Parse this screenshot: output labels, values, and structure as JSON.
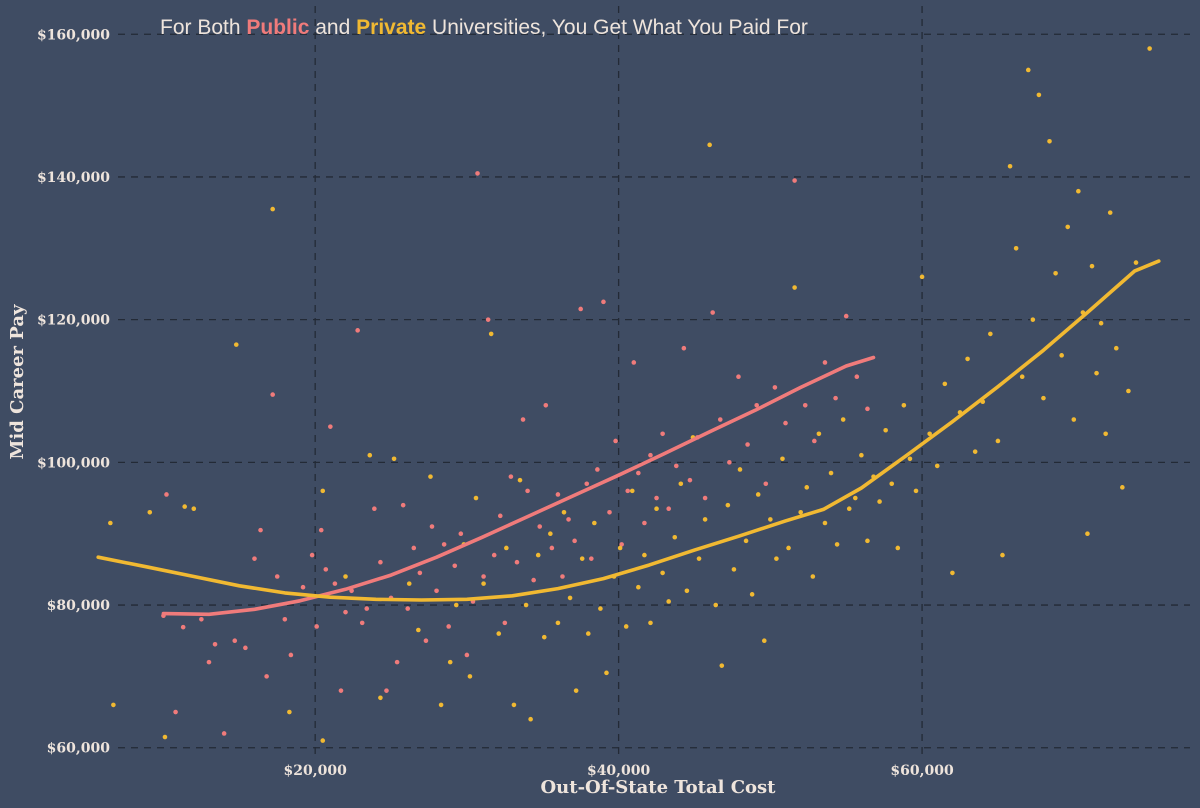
{
  "title": {
    "prefix": "For Both",
    "public_word": "Public",
    "middle": "and",
    "private_word": "Private",
    "suffix": "Universities, You Get What You Paid For"
  },
  "colors": {
    "background": "#3f4c63",
    "public": "#f07b7b",
    "private": "#f1b932",
    "grid": "#232a36",
    "text": "#eee4dc"
  },
  "chart_data": {
    "type": "scatter",
    "xlabel": "Out-Of-State Total Cost",
    "ylabel": "Mid Career Pay",
    "xlim": [
      4500,
      77000
    ],
    "ylim": [
      58000,
      162000
    ],
    "x_ticks": [
      20000,
      40000,
      60000
    ],
    "x_tick_labels": [
      "$20,000",
      "$40,000",
      "$60,000"
    ],
    "y_ticks": [
      60000,
      80000,
      100000,
      120000,
      140000,
      160000
    ],
    "y_tick_labels": [
      "$60,000",
      "$80,000",
      "$100,000",
      "$120,000",
      "$140,000",
      "$160,000"
    ],
    "grid": true,
    "legend": "none",
    "series": [
      {
        "name": "Public",
        "color": "#f07b7b",
        "points": [
          [
            10000,
            78500
          ],
          [
            10200,
            95500
          ],
          [
            10800,
            65000
          ],
          [
            11300,
            76900
          ],
          [
            12500,
            78000
          ],
          [
            13000,
            72000
          ],
          [
            13400,
            74500
          ],
          [
            14000,
            62000
          ],
          [
            14700,
            75000
          ],
          [
            15400,
            74000
          ],
          [
            16000,
            86500
          ],
          [
            16400,
            90500
          ],
          [
            16800,
            70000
          ],
          [
            17200,
            109500
          ],
          [
            17500,
            84000
          ],
          [
            18000,
            78000
          ],
          [
            18400,
            73000
          ],
          [
            19200,
            82500
          ],
          [
            19800,
            87000
          ],
          [
            20100,
            77000
          ],
          [
            20400,
            90500
          ],
          [
            20700,
            85000
          ],
          [
            21000,
            105000
          ],
          [
            21300,
            83000
          ],
          [
            21700,
            68000
          ],
          [
            22000,
            79000
          ],
          [
            22400,
            82000
          ],
          [
            22800,
            118500
          ],
          [
            23100,
            77500
          ],
          [
            23400,
            79500
          ],
          [
            23900,
            93500
          ],
          [
            24300,
            86000
          ],
          [
            24700,
            68000
          ],
          [
            25000,
            81000
          ],
          [
            25400,
            72000
          ],
          [
            25800,
            94000
          ],
          [
            26100,
            79500
          ],
          [
            26500,
            88000
          ],
          [
            26900,
            84500
          ],
          [
            27300,
            75000
          ],
          [
            27700,
            91000
          ],
          [
            28000,
            82000
          ],
          [
            28500,
            88500
          ],
          [
            28800,
            77000
          ],
          [
            29200,
            85500
          ],
          [
            29600,
            90000
          ],
          [
            30000,
            73000
          ],
          [
            30400,
            80500
          ],
          [
            30700,
            140500
          ],
          [
            31100,
            84000
          ],
          [
            31400,
            120000
          ],
          [
            31800,
            87000
          ],
          [
            32200,
            92500
          ],
          [
            32500,
            77500
          ],
          [
            32900,
            98000
          ],
          [
            33300,
            86000
          ],
          [
            33700,
            106000
          ],
          [
            34000,
            96000
          ],
          [
            34400,
            83500
          ],
          [
            34800,
            91000
          ],
          [
            35200,
            108000
          ],
          [
            35600,
            88000
          ],
          [
            36000,
            95500
          ],
          [
            36300,
            84000
          ],
          [
            36700,
            92000
          ],
          [
            37100,
            89000
          ],
          [
            37500,
            121500
          ],
          [
            37900,
            97000
          ],
          [
            38200,
            86500
          ],
          [
            38600,
            99000
          ],
          [
            39000,
            122500
          ],
          [
            39400,
            93000
          ],
          [
            39800,
            103000
          ],
          [
            40200,
            88500
          ],
          [
            40600,
            96000
          ],
          [
            41000,
            114000
          ],
          [
            41300,
            98500
          ],
          [
            41700,
            91500
          ],
          [
            42100,
            101000
          ],
          [
            42500,
            95000
          ],
          [
            42900,
            104000
          ],
          [
            43300,
            93500
          ],
          [
            43800,
            99500
          ],
          [
            44300,
            116000
          ],
          [
            44700,
            97500
          ],
          [
            45200,
            103500
          ],
          [
            45700,
            95000
          ],
          [
            46200,
            121000
          ],
          [
            46700,
            106000
          ],
          [
            47300,
            100000
          ],
          [
            47900,
            112000
          ],
          [
            48500,
            102500
          ],
          [
            49100,
            108000
          ],
          [
            49700,
            97000
          ],
          [
            50300,
            110500
          ],
          [
            51000,
            105500
          ],
          [
            51600,
            139500
          ],
          [
            52300,
            108000
          ],
          [
            52900,
            103000
          ],
          [
            53600,
            114000
          ],
          [
            54300,
            109000
          ],
          [
            55000,
            120500
          ],
          [
            55700,
            112000
          ],
          [
            56400,
            107500
          ]
        ]
      },
      {
        "name": "Private",
        "color": "#f1b932",
        "points": [
          [
            6500,
            91500
          ],
          [
            6700,
            66000
          ],
          [
            9100,
            93000
          ],
          [
            10100,
            61500
          ],
          [
            11400,
            93800
          ],
          [
            12000,
            93500
          ],
          [
            14800,
            116500
          ],
          [
            17200,
            135500
          ],
          [
            18300,
            65000
          ],
          [
            20500,
            61000
          ],
          [
            20500,
            96000
          ],
          [
            22000,
            84000
          ],
          [
            23600,
            101000
          ],
          [
            24300,
            67000
          ],
          [
            25200,
            100500
          ],
          [
            26200,
            83000
          ],
          [
            26800,
            76500
          ],
          [
            27600,
            98000
          ],
          [
            28300,
            66000
          ],
          [
            28900,
            72000
          ],
          [
            29300,
            80000
          ],
          [
            29800,
            88500
          ],
          [
            30200,
            70000
          ],
          [
            30600,
            95000
          ],
          [
            31100,
            83000
          ],
          [
            31600,
            118000
          ],
          [
            32100,
            76000
          ],
          [
            32600,
            88000
          ],
          [
            33100,
            66000
          ],
          [
            33500,
            97500
          ],
          [
            33900,
            80000
          ],
          [
            34200,
            64000
          ],
          [
            34700,
            87000
          ],
          [
            35100,
            75500
          ],
          [
            35500,
            90000
          ],
          [
            36000,
            77500
          ],
          [
            36400,
            93000
          ],
          [
            36800,
            81000
          ],
          [
            37200,
            68000
          ],
          [
            37600,
            86500
          ],
          [
            38000,
            76000
          ],
          [
            38400,
            91500
          ],
          [
            38800,
            79500
          ],
          [
            39200,
            70500
          ],
          [
            39700,
            84000
          ],
          [
            40100,
            88000
          ],
          [
            40500,
            77000
          ],
          [
            40900,
            96000
          ],
          [
            41300,
            82500
          ],
          [
            41700,
            87000
          ],
          [
            42100,
            77500
          ],
          [
            42500,
            93500
          ],
          [
            42900,
            84500
          ],
          [
            43300,
            80500
          ],
          [
            43700,
            89500
          ],
          [
            44100,
            97000
          ],
          [
            44500,
            82000
          ],
          [
            44900,
            103500
          ],
          [
            45300,
            86500
          ],
          [
            45700,
            92000
          ],
          [
            46000,
            144500
          ],
          [
            46400,
            80000
          ],
          [
            46800,
            71500
          ],
          [
            47200,
            94000
          ],
          [
            47600,
            85000
          ],
          [
            48000,
            99000
          ],
          [
            48400,
            89000
          ],
          [
            48800,
            81500
          ],
          [
            49200,
            95500
          ],
          [
            49600,
            75000
          ],
          [
            50000,
            92000
          ],
          [
            50400,
            86500
          ],
          [
            50800,
            100500
          ],
          [
            51200,
            88000
          ],
          [
            51600,
            124500
          ],
          [
            52000,
            93000
          ],
          [
            52400,
            96500
          ],
          [
            52800,
            84000
          ],
          [
            53200,
            104000
          ],
          [
            53600,
            91500
          ],
          [
            54000,
            98500
          ],
          [
            54400,
            88500
          ],
          [
            54800,
            106000
          ],
          [
            55200,
            93500
          ],
          [
            55600,
            95000
          ],
          [
            56000,
            101000
          ],
          [
            56400,
            89000
          ],
          [
            56800,
            98000
          ],
          [
            57200,
            94500
          ],
          [
            57600,
            104500
          ],
          [
            58000,
            97000
          ],
          [
            58400,
            88000
          ],
          [
            58800,
            108000
          ],
          [
            59200,
            100500
          ],
          [
            59600,
            96000
          ],
          [
            60000,
            126000
          ],
          [
            60500,
            104000
          ],
          [
            61000,
            99500
          ],
          [
            61500,
            111000
          ],
          [
            62000,
            84500
          ],
          [
            62500,
            107000
          ],
          [
            63000,
            114500
          ],
          [
            63500,
            101500
          ],
          [
            64000,
            108500
          ],
          [
            64500,
            118000
          ],
          [
            65000,
            103000
          ],
          [
            65300,
            87000
          ],
          [
            65800,
            141500
          ],
          [
            66200,
            130000
          ],
          [
            66600,
            112000
          ],
          [
            67000,
            155000
          ],
          [
            67300,
            120000
          ],
          [
            67700,
            151500
          ],
          [
            68000,
            109000
          ],
          [
            68400,
            145000
          ],
          [
            68800,
            126500
          ],
          [
            69200,
            115000
          ],
          [
            69600,
            133000
          ],
          [
            70000,
            106000
          ],
          [
            70300,
            138000
          ],
          [
            70600,
            121000
          ],
          [
            70900,
            90000
          ],
          [
            71200,
            127500
          ],
          [
            71500,
            112500
          ],
          [
            71800,
            119500
          ],
          [
            72100,
            104000
          ],
          [
            72400,
            135000
          ],
          [
            72800,
            116000
          ],
          [
            73200,
            96500
          ],
          [
            73600,
            110000
          ],
          [
            74100,
            128000
          ],
          [
            75000,
            158000
          ]
        ]
      }
    ],
    "trend_lines": [
      {
        "name": "Public",
        "color": "#f07b7b",
        "points": [
          [
            10000,
            78800
          ],
          [
            13000,
            78700
          ],
          [
            16000,
            79400
          ],
          [
            19000,
            80600
          ],
          [
            22000,
            82200
          ],
          [
            25000,
            84200
          ],
          [
            28000,
            86700
          ],
          [
            31000,
            89500
          ],
          [
            34000,
            92400
          ],
          [
            37000,
            95300
          ],
          [
            40000,
            98200
          ],
          [
            43000,
            101200
          ],
          [
            46000,
            104300
          ],
          [
            49000,
            107300
          ],
          [
            52000,
            110500
          ],
          [
            55000,
            113500
          ],
          [
            56800,
            114700
          ]
        ]
      },
      {
        "name": "Private",
        "color": "#f1b932",
        "points": [
          [
            5700,
            86700
          ],
          [
            9000,
            85300
          ],
          [
            12000,
            84000
          ],
          [
            15000,
            82700
          ],
          [
            18000,
            81700
          ],
          [
            21000,
            81100
          ],
          [
            24000,
            80800
          ],
          [
            27000,
            80700
          ],
          [
            30000,
            80800
          ],
          [
            33000,
            81300
          ],
          [
            36000,
            82300
          ],
          [
            39000,
            83700
          ],
          [
            42000,
            85600
          ],
          [
            45000,
            87700
          ],
          [
            48000,
            89700
          ],
          [
            51000,
            91800
          ],
          [
            53500,
            93400
          ],
          [
            56000,
            96400
          ],
          [
            59000,
            101000
          ],
          [
            62000,
            105700
          ],
          [
            65000,
            110600
          ],
          [
            68000,
            115700
          ],
          [
            71000,
            121200
          ],
          [
            74000,
            126800
          ],
          [
            75600,
            128200
          ]
        ]
      }
    ]
  }
}
